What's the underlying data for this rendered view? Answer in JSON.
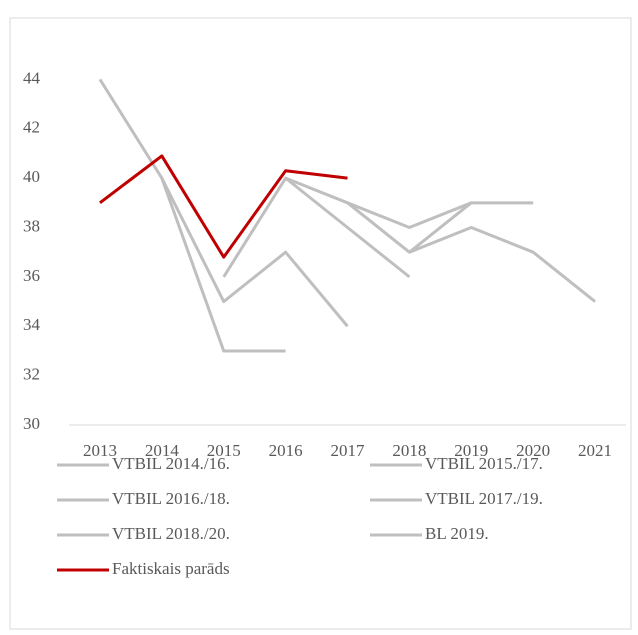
{
  "chart_data": {
    "type": "line",
    "x": [
      "2013",
      "2014",
      "2015",
      "2016",
      "2017",
      "2018",
      "2019",
      "2020",
      "2021"
    ],
    "ylim": [
      30,
      46
    ],
    "yticks": [
      30,
      32,
      34,
      36,
      38,
      40,
      42,
      44
    ],
    "series": [
      {
        "name": "VTBIL 2014./16.",
        "color": "#bfbfbf",
        "values": [
          44,
          40,
          33,
          33,
          null,
          null,
          null,
          null,
          null
        ]
      },
      {
        "name": "VTBIL 2015./17.",
        "color": "#bfbfbf",
        "values": [
          null,
          40,
          35,
          37,
          34,
          null,
          null,
          null,
          null
        ]
      },
      {
        "name": "VTBIL 2016./18.",
        "color": "#bfbfbf",
        "values": [
          null,
          null,
          36,
          40,
          38,
          36,
          null,
          null,
          null
        ]
      },
      {
        "name": "VTBIL 2017./19.",
        "color": "#bfbfbf",
        "values": [
          null,
          null,
          null,
          40,
          39,
          38,
          39,
          null,
          null
        ]
      },
      {
        "name": "VTBIL 2018./20.",
        "color": "#bfbfbf",
        "values": [
          null,
          null,
          null,
          null,
          39,
          37,
          39,
          39,
          null
        ]
      },
      {
        "name": "BL 2019.",
        "color": "#bfbfbf",
        "values": [
          null,
          null,
          null,
          null,
          null,
          37,
          38,
          37,
          35
        ]
      },
      {
        "name": "Faktiskais parāds",
        "color": "#c00000",
        "values": [
          39,
          40.9,
          36.8,
          40.3,
          40,
          null,
          null,
          null,
          null
        ]
      }
    ]
  }
}
